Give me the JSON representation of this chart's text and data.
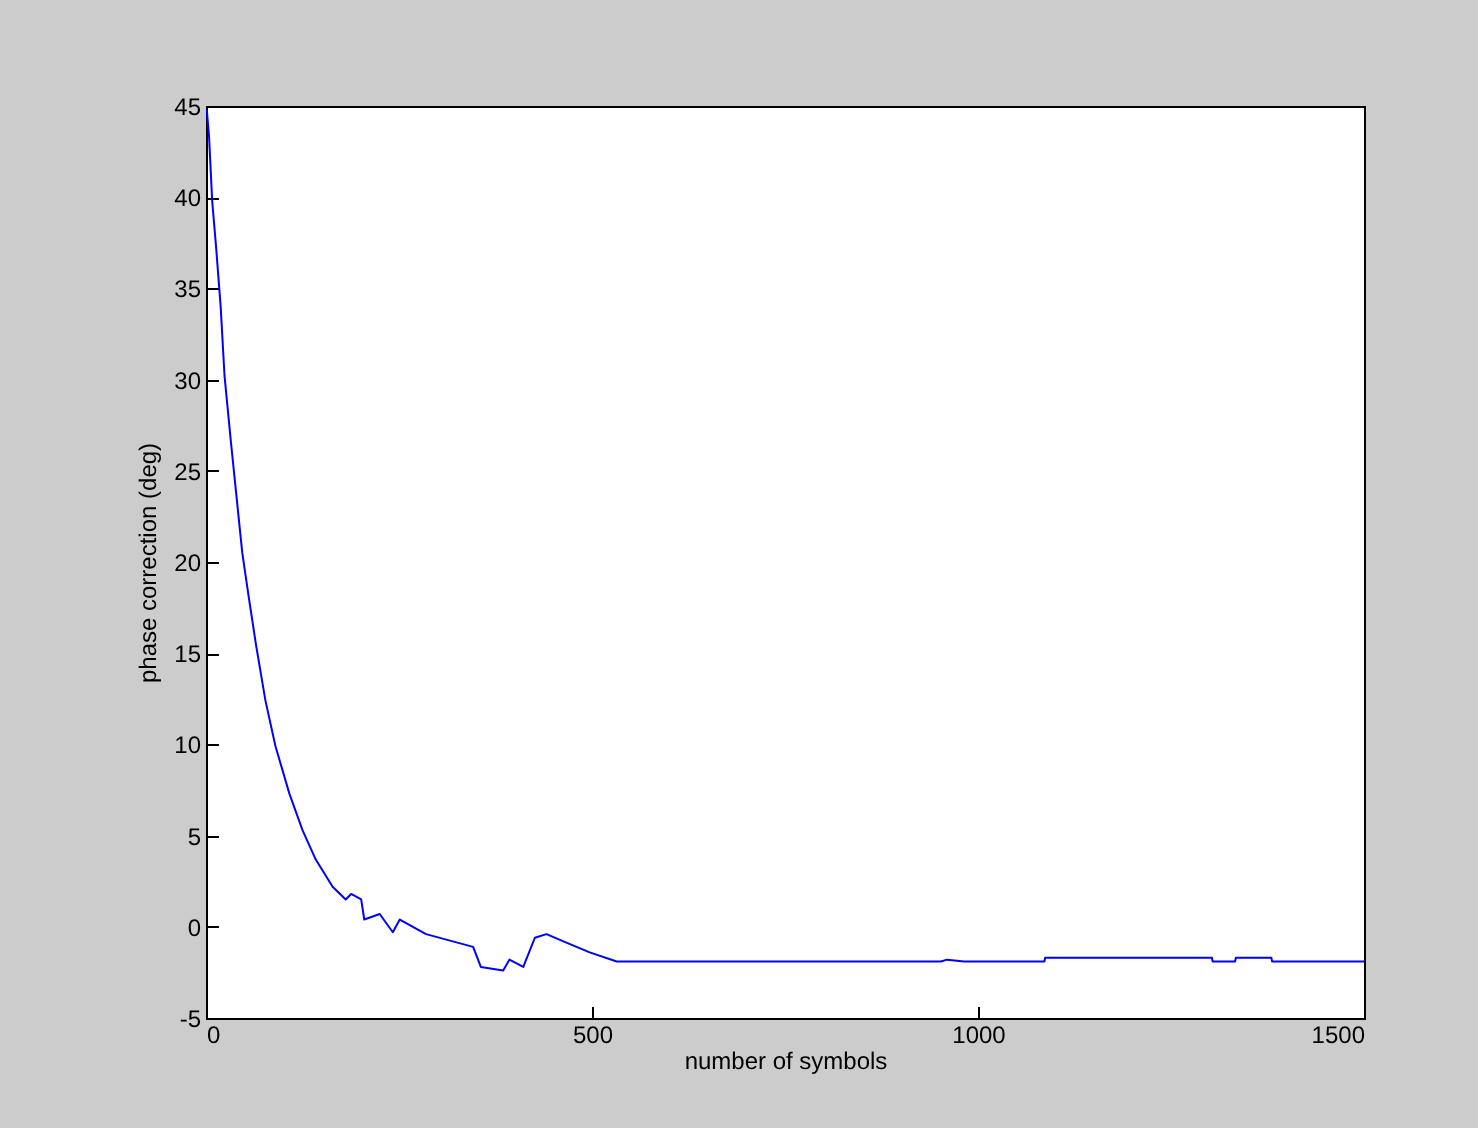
{
  "chart_data": {
    "type": "line",
    "xlabel": "number of symbols",
    "ylabel": "phase correction (deg)",
    "xlim": [
      0,
      1500
    ],
    "xticks": [
      0,
      500,
      1000,
      1500
    ],
    "ylim": [
      -5,
      45
    ],
    "yticks": [
      -5,
      0,
      5,
      10,
      15,
      20,
      25,
      30,
      35,
      40,
      45
    ],
    "grid": false,
    "legend": false,
    "series": [
      {
        "color": "#0000ff",
        "x": [
          1,
          4,
          8,
          13,
          19,
          24,
          32,
          39,
          47,
          56,
          65,
          77,
          90,
          108,
          125,
          142,
          164,
          181,
          188,
          201,
          205,
          225,
          242,
          251,
          285,
          346,
          356,
          385,
          393,
          411,
          426,
          441,
          463,
          497,
          532,
          952,
          960,
          982,
          1086,
          1087,
          1303,
          1304,
          1333,
          1334,
          1380,
          1381,
          1500
        ],
        "values": [
          44.8,
          43.3,
          39.8,
          37.3,
          34.0,
          30.2,
          26.7,
          23.8,
          20.5,
          17.9,
          15.4,
          12.4,
          9.9,
          7.3,
          5.3,
          3.7,
          2.2,
          1.5,
          1.8,
          1.5,
          0.4,
          0.7,
          -0.3,
          0.4,
          -0.4,
          -1.1,
          -2.2,
          -2.4,
          -1.8,
          -2.2,
          -0.6,
          -0.4,
          -0.8,
          -1.4,
          -1.9,
          -1.9,
          -1.8,
          -1.9,
          -1.9,
          -1.7,
          -1.7,
          -1.9,
          -1.9,
          -1.7,
          -1.7,
          -1.9,
          -1.9
        ]
      }
    ]
  }
}
